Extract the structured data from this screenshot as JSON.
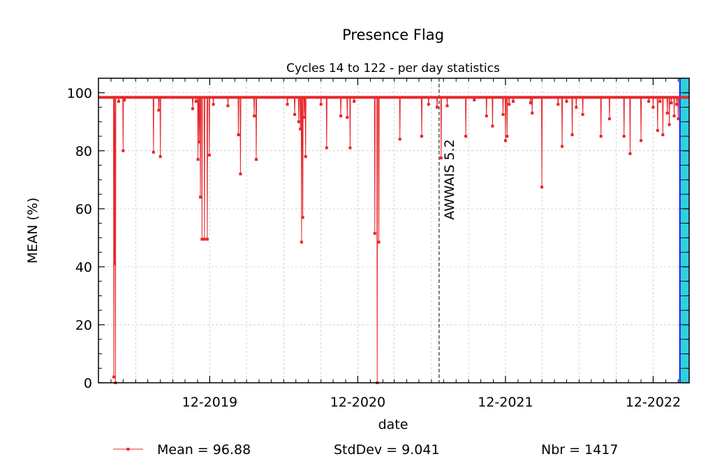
{
  "chart_data": {
    "type": "line",
    "title": "Presence Flag",
    "subtitle": "Cycles 14 to 122 - per day statistics",
    "xlabel": "date",
    "ylabel": "MEAN (%)",
    "ylim": [
      0,
      105
    ],
    "xlim": [
      "2019-03-01",
      "2023-02-28"
    ],
    "yticks": [
      0,
      20,
      40,
      60,
      80,
      100
    ],
    "xticks": [
      {
        "date": "2019-12-01",
        "label": "12-2019"
      },
      {
        "date": "2020-12-01",
        "label": "12-2020"
      },
      {
        "date": "2021-12-01",
        "label": "12-2021"
      },
      {
        "date": "2022-12-01",
        "label": "12-2022"
      }
    ],
    "grid": true,
    "annotation": {
      "date": "2021-06-20",
      "label": "AWWAIS 5.2"
    },
    "highlight_band": {
      "from": "2023-02-05",
      "to": "2023-02-28",
      "fill": "#2fd0dd",
      "edge": "#1a1aff"
    },
    "series": [
      {
        "name": "Mean",
        "color": "#e8262b",
        "baseline": 98.4,
        "dips": [
          [
            "2019-04-08",
            2.0
          ],
          [
            "2019-04-10",
            41.0
          ],
          [
            "2019-04-12",
            0.0
          ],
          [
            "2019-04-20",
            97.0
          ],
          [
            "2019-05-01",
            80.0
          ],
          [
            "2019-05-04",
            97.5
          ],
          [
            "2019-07-15",
            79.5
          ],
          [
            "2019-07-28",
            94.0
          ],
          [
            "2019-08-01",
            78.0
          ],
          [
            "2019-10-20",
            94.5
          ],
          [
            "2019-10-28",
            97.0
          ],
          [
            "2019-11-02",
            77.0
          ],
          [
            "2019-11-05",
            83.0
          ],
          [
            "2019-11-08",
            64.0
          ],
          [
            "2019-11-12",
            49.5
          ],
          [
            "2019-11-18",
            49.5
          ],
          [
            "2019-11-25",
            49.5
          ],
          [
            "2019-11-30",
            78.5
          ],
          [
            "2019-12-10",
            96.0
          ],
          [
            "2020-01-15",
            95.5
          ],
          [
            "2020-02-10",
            85.5
          ],
          [
            "2020-02-15",
            72.0
          ],
          [
            "2020-03-20",
            92.0
          ],
          [
            "2020-03-25",
            77.0
          ],
          [
            "2020-06-10",
            96.0
          ],
          [
            "2020-06-28",
            92.5
          ],
          [
            "2020-07-08",
            90.0
          ],
          [
            "2020-07-12",
            87.5
          ],
          [
            "2020-07-15",
            48.5
          ],
          [
            "2020-07-18",
            57.0
          ],
          [
            "2020-07-22",
            91.5
          ],
          [
            "2020-07-25",
            78.0
          ],
          [
            "2020-09-01",
            96.0
          ],
          [
            "2020-09-15",
            81.0
          ],
          [
            "2020-10-20",
            92.0
          ],
          [
            "2020-11-05",
            91.5
          ],
          [
            "2020-11-12",
            81.0
          ],
          [
            "2020-11-22",
            97.0
          ],
          [
            "2021-01-12",
            51.5
          ],
          [
            "2021-01-18",
            0.0
          ],
          [
            "2021-01-22",
            48.5
          ],
          [
            "2021-03-15",
            84.0
          ],
          [
            "2021-05-08",
            85.0
          ],
          [
            "2021-05-25",
            96.0
          ],
          [
            "2021-06-15",
            95.0
          ],
          [
            "2021-06-25",
            77.5
          ],
          [
            "2021-07-10",
            95.5
          ],
          [
            "2021-08-25",
            85.0
          ],
          [
            "2021-09-15",
            97.5
          ],
          [
            "2021-10-15",
            92.0
          ],
          [
            "2021-10-30",
            88.5
          ],
          [
            "2021-11-25",
            92.5
          ],
          [
            "2021-12-01",
            83.5
          ],
          [
            "2021-12-05",
            85.0
          ],
          [
            "2021-12-10",
            96.0
          ],
          [
            "2021-12-20",
            97.0
          ],
          [
            "2022-02-01",
            96.5
          ],
          [
            "2022-02-05",
            93.0
          ],
          [
            "2022-03-01",
            67.5
          ],
          [
            "2022-04-10",
            96.0
          ],
          [
            "2022-04-20",
            81.5
          ],
          [
            "2022-05-01",
            97.0
          ],
          [
            "2022-05-15",
            85.5
          ],
          [
            "2022-05-25",
            95.0
          ],
          [
            "2022-06-10",
            92.5
          ],
          [
            "2022-07-25",
            85.0
          ],
          [
            "2022-08-15",
            91.0
          ],
          [
            "2022-09-20",
            85.0
          ],
          [
            "2022-10-05",
            79.0
          ],
          [
            "2022-11-01",
            83.5
          ],
          [
            "2022-11-20",
            97.0
          ],
          [
            "2022-12-01",
            95.0
          ],
          [
            "2022-12-12",
            87.0
          ],
          [
            "2022-12-18",
            97.0
          ],
          [
            "2022-12-25",
            85.5
          ],
          [
            "2023-01-05",
            93.0
          ],
          [
            "2023-01-10",
            89.0
          ],
          [
            "2023-01-15",
            96.5
          ],
          [
            "2023-01-22",
            92.0
          ],
          [
            "2023-01-28",
            96.0
          ],
          [
            "2023-02-01",
            91.0
          ]
        ]
      }
    ]
  },
  "legend": {
    "mean_label": "Mean = 96.88",
    "stddev_label": "StdDev = 9.041",
    "count_label": "Nbr = 1417"
  }
}
